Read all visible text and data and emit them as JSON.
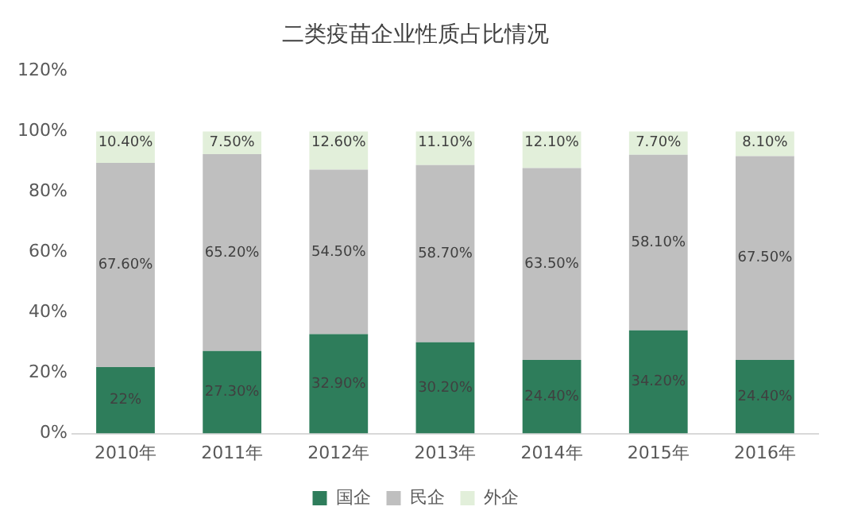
{
  "chart_data": {
    "type": "bar",
    "title": "二类疫苗企业性质占比情况",
    "stacked": true,
    "legend": "bottom",
    "grid": false,
    "categories": [
      "2010年",
      "2011年",
      "2012年",
      "2013年",
      "2014年",
      "2015年",
      "2016年"
    ],
    "ylim": [
      0,
      120
    ],
    "yticks": [
      {
        "value": 0,
        "label": "0%"
      },
      {
        "value": 20,
        "label": "20%"
      },
      {
        "value": 40,
        "label": "40%"
      },
      {
        "value": 60,
        "label": "60%"
      },
      {
        "value": 80,
        "label": "80%"
      },
      {
        "value": 100,
        "label": "100%"
      },
      {
        "value": 120,
        "label": "120%"
      }
    ],
    "series": [
      {
        "name": "国企",
        "color": "#2e7d5b",
        "values": [
          22,
          27.3,
          32.9,
          30.2,
          24.4,
          34.2,
          24.4
        ],
        "value_labels": [
          "22%",
          "27.30%",
          "32.90%",
          "30.20%",
          "24.40%",
          "34.20%",
          "24.40%"
        ]
      },
      {
        "name": "民企",
        "color": "#bfbfbf",
        "values": [
          67.6,
          65.2,
          54.5,
          58.7,
          63.5,
          58.1,
          67.5
        ],
        "value_labels": [
          "67.60%",
          "65.20%",
          "54.50%",
          "58.70%",
          "63.50%",
          "58.10%",
          "67.50%"
        ]
      },
      {
        "name": "外企",
        "color": "#e2efda",
        "values": [
          10.4,
          7.5,
          12.6,
          11.1,
          12.1,
          7.7,
          8.1
        ],
        "value_labels": [
          "10.40%",
          "7.50%",
          "12.60%",
          "11.10%",
          "12.10%",
          "7.70%",
          "8.10%"
        ]
      }
    ]
  }
}
